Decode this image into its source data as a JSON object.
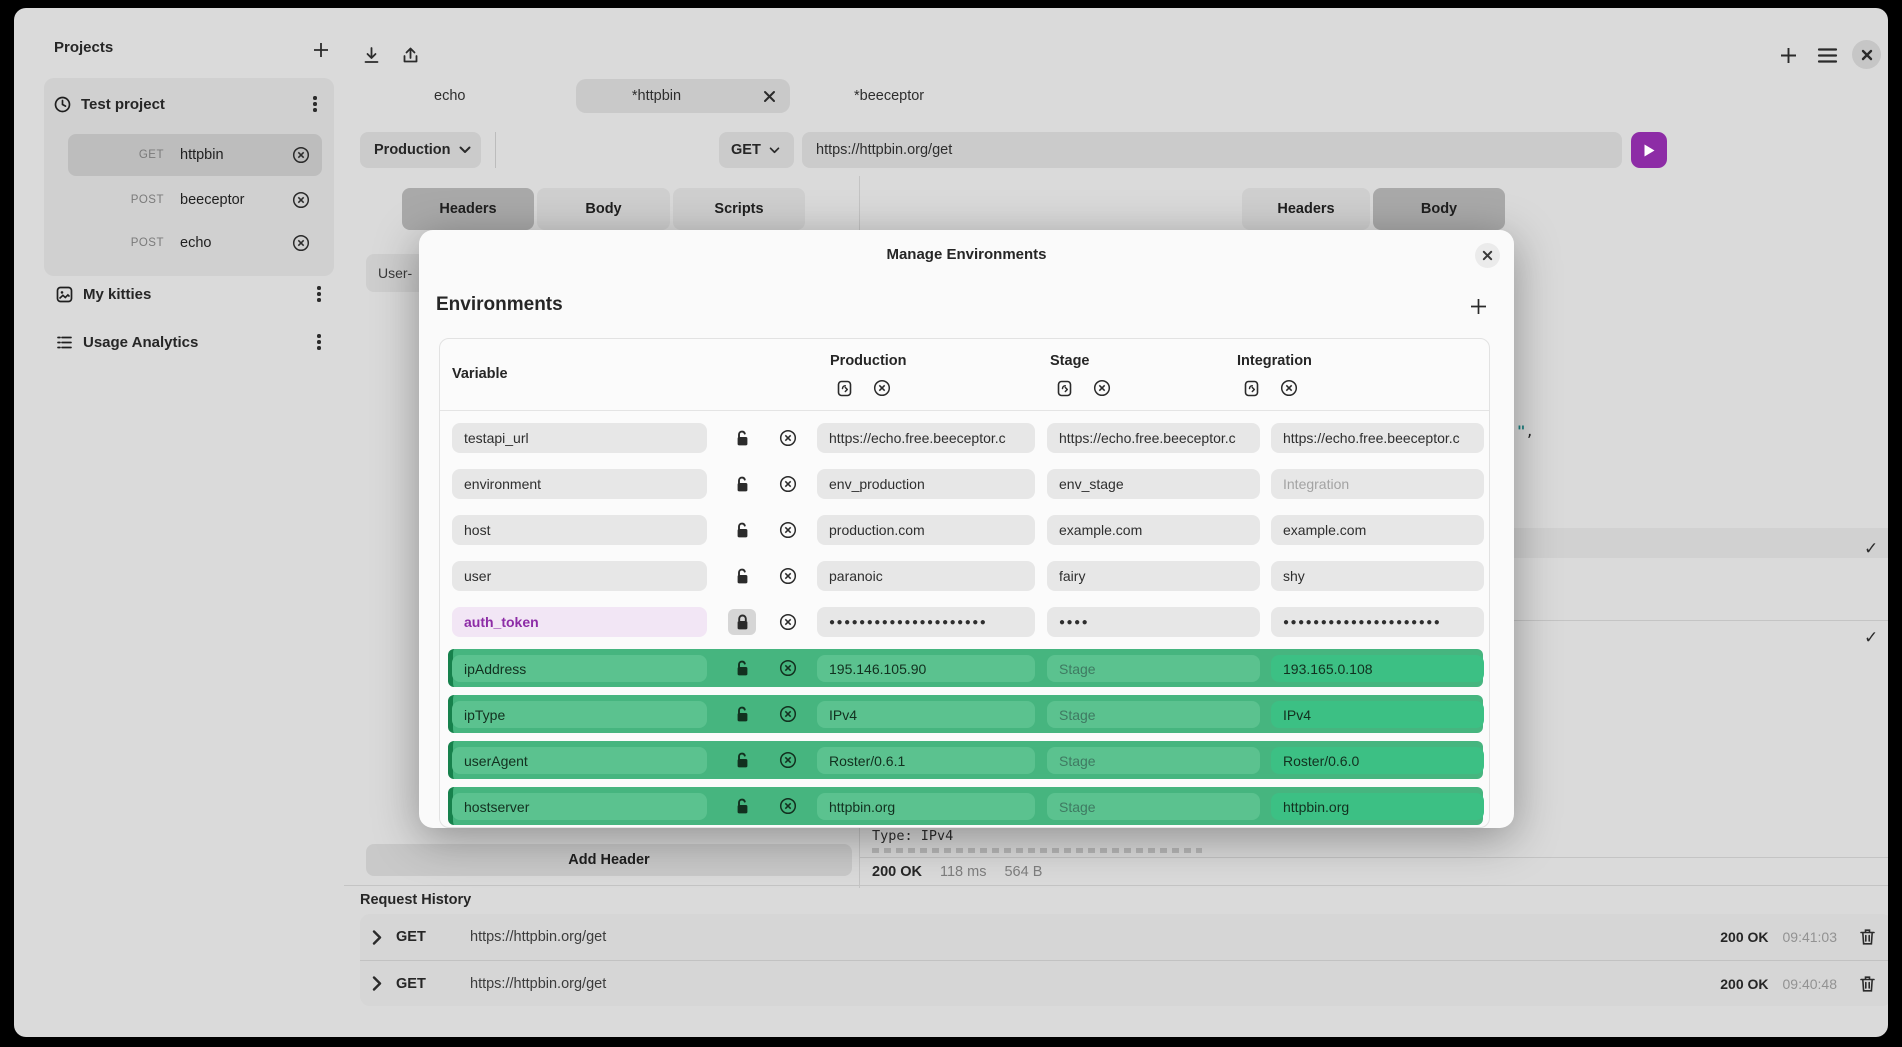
{
  "sidebar": {
    "title": "Projects",
    "project": {
      "name": "Test project",
      "requests": [
        {
          "method": "GET",
          "name": "httpbin"
        },
        {
          "method": "POST",
          "name": "beeceptor"
        },
        {
          "method": "POST",
          "name": "echo"
        }
      ]
    },
    "folders": [
      {
        "name": "My kitties"
      },
      {
        "name": "Usage Analytics"
      }
    ]
  },
  "workspace_tabs": [
    {
      "label": "echo"
    },
    {
      "label": "*httpbin"
    },
    {
      "label": "*beeceptor"
    }
  ],
  "request_bar": {
    "environment": "Production",
    "method": "GET",
    "url": "https://httpbin.org/get"
  },
  "request_tabs": {
    "headers": "Headers",
    "body": "Body",
    "scripts": "Scripts"
  },
  "response_tabs": {
    "headers": "Headers",
    "body": "Body"
  },
  "header_chip": "User-",
  "add_header_label": "Add Header",
  "response": {
    "fragment_quote": "\"",
    "fragment_comma": ",",
    "check": "✓",
    "partial_line": "Type: IPv4",
    "status": "200 OK",
    "time": "118 ms",
    "size": "564 B"
  },
  "modal": {
    "title": "Manage Environments",
    "close": "✕",
    "section_title": "Environments",
    "columns": {
      "variable": "Variable",
      "production": "Production",
      "stage": "Stage",
      "integration": "Integration"
    },
    "placeholders": {
      "stage": "Stage",
      "integration": "Integration"
    },
    "rows": [
      {
        "name": "testapi_url",
        "production": "https://echo.free.beeceptor.c",
        "stage": "https://echo.free.beeceptor.c",
        "integration": "https://echo.free.beeceptor.c"
      },
      {
        "name": "environment",
        "production": "env_production",
        "stage": "env_stage",
        "integration": ""
      },
      {
        "name": "host",
        "production": "production.com",
        "stage": "example.com",
        "integration": "example.com"
      },
      {
        "name": "user",
        "production": "paranoic",
        "stage": "fairy",
        "integration": "shy"
      },
      {
        "name": "auth_token",
        "production": "●●●●●●●●●●●●●●●●●●●●●",
        "stage": "●●●●",
        "integration": "●●●●●●●●●●●●●●●●●●●●●"
      },
      {
        "name": "ipAddress",
        "production": "195.146.105.90",
        "stage": "",
        "integration": "193.165.0.108"
      },
      {
        "name": "ipType",
        "production": "IPv4",
        "stage": "",
        "integration": "IPv4"
      },
      {
        "name": "userAgent",
        "production": "Roster/0.6.1",
        "stage": "",
        "integration": "Roster/0.6.0"
      },
      {
        "name": "hostserver",
        "production": "httpbin.org",
        "stage": "",
        "integration": "httpbin.org"
      }
    ]
  },
  "history": {
    "title": "Request History",
    "rows": [
      {
        "method": "GET",
        "url": "https://httpbin.org/get",
        "status": "200 OK",
        "time": "09:41:03"
      },
      {
        "method": "GET",
        "url": "https://httpbin.org/get",
        "status": "200 OK",
        "time": "09:40:48"
      }
    ]
  },
  "icons": {
    "sidebar_add": "plus",
    "project": "clock",
    "folder1": "image",
    "folder2": "analytics-list",
    "topbar": [
      "download",
      "upload"
    ],
    "window": [
      "plus",
      "menu",
      "close"
    ],
    "env_column": [
      "duplicate",
      "x-circle"
    ],
    "row": [
      "lock",
      "x-circle"
    ],
    "history": [
      "chevron-right",
      "trash"
    ]
  }
}
